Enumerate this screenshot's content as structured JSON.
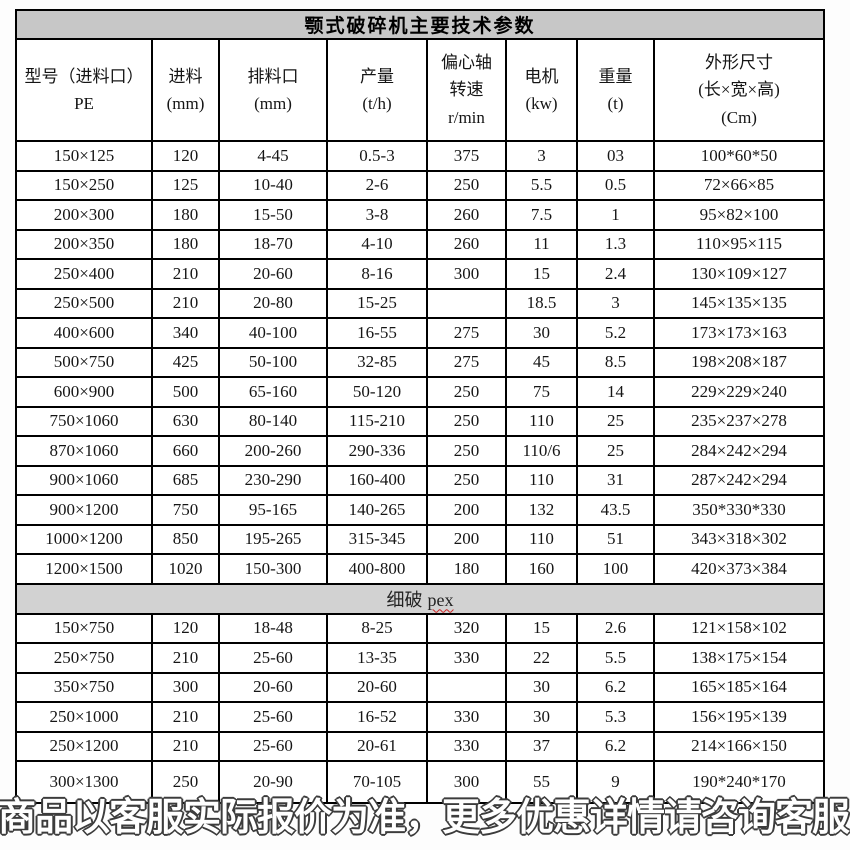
{
  "title": "颚式破碎机主要技术参数",
  "table": {
    "headers": [
      "型号（进料口）\nPE",
      "进料\n(mm)",
      "排料口\n(mm)",
      "产量\n(t/h)",
      "偏心轴\n转速\nr/min",
      "电机\n(kw)",
      "重量\n(t)",
      "外形尺寸\n(长×宽×高)\n(Cm)"
    ],
    "pe_rows": [
      [
        "150×125",
        "120",
        "4-45",
        "0.5-3",
        "375",
        "3",
        "03",
        "100*60*50"
      ],
      [
        "150×250",
        "125",
        "10-40",
        "2-6",
        "250",
        "5.5",
        "0.5",
        "72×66×85"
      ],
      [
        "200×300",
        "180",
        "15-50",
        "3-8",
        "260",
        "7.5",
        "1",
        "95×82×100"
      ],
      [
        "200×350",
        "180",
        "18-70",
        "4-10",
        "260",
        "11",
        "1.3",
        "110×95×115"
      ],
      [
        "250×400",
        "210",
        "20-60",
        "8-16",
        "300",
        "15",
        "2.4",
        "130×109×127"
      ],
      [
        "250×500",
        "210",
        "20-80",
        "15-25",
        "",
        "18.5",
        "3",
        "145×135×135"
      ],
      [
        "400×600",
        "340",
        "40-100",
        "16-55",
        "275",
        "30",
        "5.2",
        "173×173×163"
      ],
      [
        "500×750",
        "425",
        "50-100",
        "32-85",
        "275",
        "45",
        "8.5",
        "198×208×187"
      ],
      [
        "600×900",
        "500",
        "65-160",
        "50-120",
        "250",
        "75",
        "14",
        "229×229×240"
      ],
      [
        "750×1060",
        "630",
        "80-140",
        "115-210",
        "250",
        "110",
        "25",
        "235×237×278"
      ],
      [
        "870×1060",
        "660",
        "200-260",
        "290-336",
        "250",
        "110/6",
        "25",
        "284×242×294"
      ],
      [
        "900×1060",
        "685",
        "230-290",
        "160-400",
        "250",
        "110",
        "31",
        "287×242×294"
      ],
      [
        "900×1200",
        "750",
        "95-165",
        "140-265",
        "200",
        "132",
        "43.5",
        "350*330*330"
      ],
      [
        "1000×1200",
        "850",
        "195-265",
        "315-345",
        "200",
        "110",
        "51",
        "343×318×302"
      ],
      [
        "1200×1500",
        "1020",
        "150-300",
        "400-800",
        "180",
        "160",
        "100",
        "420×373×384"
      ]
    ],
    "section_pex": {
      "prefix": "细破",
      "code": "pex"
    },
    "pex_rows": [
      [
        "150×750",
        "120",
        "18-48",
        "8-25",
        "320",
        "15",
        "2.6",
        "121×158×102"
      ],
      [
        "250×750",
        "210",
        "25-60",
        "13-35",
        "330",
        "22",
        "5.5",
        "138×175×154"
      ],
      [
        "350×750",
        "300",
        "20-60",
        "20-60",
        "",
        "30",
        "6.2",
        "165×185×164"
      ],
      [
        "250×1000",
        "210",
        "25-60",
        "16-52",
        "330",
        "30",
        "5.3",
        "156×195×139"
      ],
      [
        "250×1200",
        "210",
        "25-60",
        "20-61",
        "330",
        "37",
        "6.2",
        "214×166×150"
      ],
      [
        "300×1300",
        "250",
        "20-90",
        "70-105",
        "300",
        "55",
        "9",
        "190*240*170"
      ]
    ]
  },
  "watermark_text": "商品以客服实际报价为准，更多优惠详情请咨询客服！！！",
  "colors": {
    "title_bar_bg": "#c7c7c7",
    "section_bar_bg": "#d2d2d2",
    "border": "#000000",
    "spellcheck_underline": "#cc2222",
    "watermark_fill": "#ffffff",
    "watermark_outline": "#3c3c3c"
  }
}
